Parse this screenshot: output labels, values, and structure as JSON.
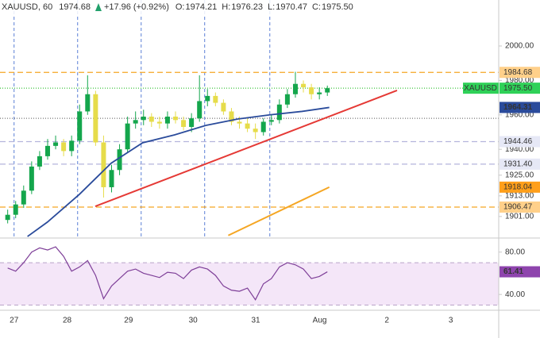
{
  "chart_data": [
    {
      "type": "candlestick",
      "title": "XAUUSD, 60",
      "last": 1974.68,
      "change": {
        "value": 17.96,
        "label": "+17.96"
      },
      "change_pct": {
        "value": 0.92,
        "label": "(+0.92%)"
      },
      "ohlc": [
        {
          "label": "O:",
          "value": 1974.21
        },
        {
          "label": "H:",
          "value": 1976.23
        },
        {
          "label": "L:",
          "value": 1970.47
        },
        {
          "label": "C:",
          "value": 1975.5,
          "value_label": "1975.50"
        }
      ],
      "header_color": "#22a06b",
      "x": [
        26.9,
        27.025,
        27.15,
        27.275,
        27.4,
        27.525,
        27.65,
        27.775,
        27.9,
        28.025,
        28.15,
        28.275,
        28.4,
        28.525,
        28.65,
        28.775,
        28.9,
        29.025,
        29.15,
        29.275,
        29.4,
        29.525,
        29.65,
        29.775,
        29.9,
        30.025,
        30.15,
        30.275,
        30.4,
        30.525,
        30.65,
        30.775,
        30.9,
        31.025,
        31.15,
        31.275,
        31.4,
        31.525,
        31.65,
        31.775,
        31.9
      ],
      "open": [
        1899,
        1902,
        1908,
        1916,
        1930,
        1936,
        1942,
        1944,
        1939,
        1945,
        1962,
        1972,
        1944,
        1918,
        1928,
        1940,
        1955,
        1957,
        1959,
        1956,
        1955,
        1959,
        1957,
        1953,
        1958,
        1968,
        1971,
        1967,
        1962,
        1956,
        1955,
        1952,
        1950,
        1956,
        1957,
        1966,
        1972,
        1978,
        1976,
        1972,
        1973
      ],
      "high": [
        1905,
        1910,
        1919,
        1933,
        1939,
        1946,
        1948,
        1946,
        1948,
        1966,
        1983,
        1974,
        1948,
        1931,
        1943,
        1959,
        1962,
        1963,
        1961,
        1959,
        1962,
        1962,
        1959,
        1961,
        1983,
        1975,
        1973,
        1969,
        1964,
        1959,
        1958,
        1955,
        1958,
        1960,
        1969,
        1975,
        1985,
        1980,
        1978,
        1976,
        1977
      ],
      "low": [
        1897,
        1900,
        1906,
        1914,
        1928,
        1934,
        1940,
        1936,
        1936,
        1943,
        1960,
        1942,
        1912,
        1915,
        1925,
        1938,
        1952,
        1954,
        1953,
        1952,
        1952,
        1955,
        1951,
        1950,
        1956,
        1965,
        1965,
        1960,
        1954,
        1952,
        1950,
        1946,
        1948,
        1954,
        1955,
        1964,
        1970,
        1973,
        1969,
        1969,
        1971
      ],
      "close": [
        1902,
        1908,
        1916,
        1930,
        1936,
        1942,
        1944,
        1939,
        1945,
        1962,
        1972,
        1944,
        1918,
        1928,
        1940,
        1955,
        1957,
        1959,
        1956,
        1955,
        1959,
        1957,
        1953,
        1958,
        1968,
        1971,
        1967,
        1962,
        1956,
        1955,
        1952,
        1950,
        1956,
        1957,
        1966,
        1972,
        1978,
        1976,
        1972,
        1973,
        1975.5
      ],
      "up_color": "#14a64c",
      "down_color": "#e6dc4a",
      "ma": {
        "color": "#2a4b9b",
        "x": [
          27.21,
          27.52,
          28.02,
          28.52,
          29.01,
          29.51,
          30.01,
          30.5,
          31.0,
          31.5,
          31.93
        ],
        "values": [
          1889.4,
          1897.7,
          1913.8,
          1932,
          1943.8,
          1948.4,
          1954,
          1957.6,
          1960,
          1962,
          1964.31
        ],
        "tag_fill": "#2a4b9b",
        "tag_text": "#ffffff"
      },
      "trendlines": [
        {
          "color": "#e53935",
          "x": [
            28.27,
            32.99
          ],
          "values": [
            1906.9,
            1974.2
          ]
        },
        {
          "color": "#f5a623",
          "x": [
            30.35,
            31.93
          ],
          "values": [
            1890,
            1918.04
          ],
          "tag_fill": "#ff9f1a",
          "tag_text": "#000000"
        }
      ],
      "levels": [
        {
          "value": 1984.68,
          "color": "#f5a623",
          "dash": "7 4",
          "tag_fill": "#ffd08a",
          "tag_text": "#000000"
        },
        {
          "value": 1975.5,
          "label": "1975.50",
          "color": "#3cc43c",
          "dash": "1 2",
          "tag_fill": "#2fd158",
          "tag_text": "#000000",
          "ticker": "XAUUSD"
        },
        {
          "value": 1958,
          "color": "#777777",
          "dash": "1 2"
        },
        {
          "value": 1944.46,
          "color": "#b4b4dc",
          "dash": "7 4",
          "tag_fill": "#e6e8f6",
          "tag_text": "#000000"
        },
        {
          "value": 1931.4,
          "label": "1931.40",
          "color": "#b4b4dc",
          "dash": "7 4",
          "tag_fill": "#e6e8f6",
          "tag_text": "#000000"
        },
        {
          "value": 1906.47,
          "color": "#f5a623",
          "dash": "7 4",
          "tag_fill": "#ffd08a",
          "tag_text": "#000000"
        }
      ],
      "vlines": [
        27,
        27.994,
        28.988,
        29.981,
        31.0
      ],
      "vline_color": "#5b7fd6",
      "xlim": [
        26.78,
        34.58
      ],
      "xticks": [
        27,
        {
          "value": 27.83,
          "label": "28"
        },
        {
          "value": 28.79,
          "label": "29"
        },
        {
          "value": 29.8,
          "label": "30"
        },
        {
          "value": 30.78,
          "label": "31"
        },
        {
          "value": 31.78,
          "label": "Aug"
        },
        {
          "value": 32.83,
          "label": "2"
        },
        {
          "value": 33.83,
          "label": "3"
        }
      ],
      "ylim": [
        1888.5,
        2026.7
      ],
      "yticks": [
        {
          "value": 2000,
          "label": "2000.00"
        },
        {
          "value": 1980,
          "label": "1980.00"
        },
        {
          "value": 1960,
          "label": "1960.00"
        },
        {
          "value": 1940,
          "label": "1940.00"
        },
        {
          "value": 1925,
          "label": "1925.00"
        },
        {
          "value": 1913,
          "label": "1913.00"
        },
        {
          "value": 1901,
          "label": "1901.00"
        }
      ]
    },
    {
      "type": "line",
      "x": [
        26.9,
        27.025,
        27.15,
        27.275,
        27.4,
        27.525,
        27.65,
        27.775,
        27.9,
        28.025,
        28.15,
        28.275,
        28.4,
        28.525,
        28.65,
        28.775,
        28.9,
        29.025,
        29.15,
        29.275,
        29.4,
        29.525,
        29.65,
        29.775,
        29.9,
        30.025,
        30.15,
        30.275,
        30.4,
        30.525,
        30.65,
        30.775,
        30.9,
        31.025,
        31.15,
        31.275,
        31.4,
        31.525,
        31.65,
        31.775,
        31.9
      ],
      "values": [
        65,
        62,
        70,
        80,
        84,
        82,
        85,
        76,
        62,
        66,
        72,
        58,
        36,
        48,
        55,
        62,
        64,
        60,
        58,
        56,
        61,
        60,
        55,
        63,
        66,
        64,
        58,
        48,
        44,
        43,
        46,
        35,
        50,
        55,
        66,
        70,
        68,
        64,
        55,
        57,
        61.41
      ],
      "color": "#7e3f98",
      "tag_fill": "#8e44ad",
      "tag_text": "#ffffff",
      "band": [
        30,
        70
      ],
      "band_color": "#f4e6f8",
      "band_line": "#b9a3c8",
      "ylim": [
        25.1,
        93.3
      ],
      "yticks": [
        {
          "value": 80,
          "label": "80.00"
        },
        {
          "value": 40,
          "label": "40.00"
        }
      ]
    }
  ]
}
